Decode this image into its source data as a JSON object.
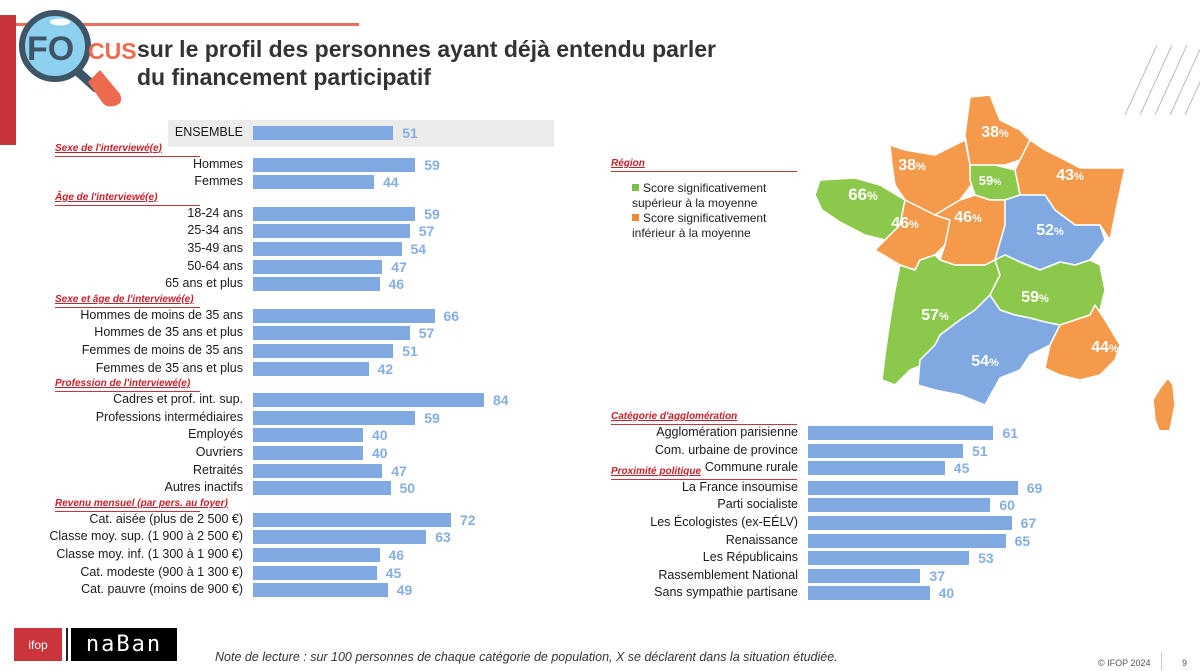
{
  "header": {
    "logo_text_fo": "FO",
    "logo_text_cus": "CUS",
    "title_line1": "sur le profil des personnes ayant déjà entendu parler",
    "title_line2": "du financement participatif"
  },
  "colors": {
    "bar": "#7fa9e0",
    "value_label": "#86aee3",
    "section_header": "#c8202a",
    "map_above": "#8cc84b",
    "map_below": "#f59a4a",
    "map_neutral": "#7fa9e0"
  },
  "chart_data": [
    {
      "type": "bar",
      "orientation": "horizontal",
      "title": "Profil sociodémographique",
      "unit": "%",
      "groups": [
        {
          "header": "",
          "rows": [
            {
              "label": "ENSEMBLE",
              "value": 51,
              "highlight": true
            }
          ]
        },
        {
          "header": "Sexe de l'interviewé(e)",
          "rows": [
            {
              "label": "Hommes",
              "value": 59
            },
            {
              "label": "Femmes",
              "value": 44
            }
          ]
        },
        {
          "header": "Âge de l'interviewé(e)",
          "rows": [
            {
              "label": "18-24 ans",
              "value": 59
            },
            {
              "label": "25-34 ans",
              "value": 57
            },
            {
              "label": "35-49 ans",
              "value": 54
            },
            {
              "label": "50-64 ans",
              "value": 47
            },
            {
              "label": "65 ans et plus",
              "value": 46
            }
          ]
        },
        {
          "header": "Sexe et âge de l'interviewé(e)",
          "rows": [
            {
              "label": "Hommes de moins de 35 ans",
              "value": 66
            },
            {
              "label": "Hommes de 35 ans et plus",
              "value": 57
            },
            {
              "label": "Femmes de moins de 35 ans",
              "value": 51
            },
            {
              "label": "Femmes de 35 ans et plus",
              "value": 42
            }
          ]
        },
        {
          "header": "Profession de l'interviewé(e)",
          "rows": [
            {
              "label": "Cadres et prof. int. sup.",
              "value": 84
            },
            {
              "label": "Professions intermédiaires",
              "value": 59
            },
            {
              "label": "Employés",
              "value": 40
            },
            {
              "label": "Ouvriers",
              "value": 40
            },
            {
              "label": "Retraités",
              "value": 47
            },
            {
              "label": "Autres inactifs",
              "value": 50
            }
          ]
        },
        {
          "header": "Revenu mensuel (par pers. au foyer)",
          "rows": [
            {
              "label": "Cat. aisée (plus de 2 500 €)",
              "value": 72
            },
            {
              "label": "Classe moy. sup. (1 900 à 2 500 €)",
              "value": 63
            },
            {
              "label": "Classe moy. inf. (1 300 à 1 900 €)",
              "value": 46
            },
            {
              "label": "Cat. modeste (900 à 1 300 €)",
              "value": 45
            },
            {
              "label": "Cat. pauvre (moins de 900 €)",
              "value": 49
            }
          ]
        }
      ]
    },
    {
      "type": "bar",
      "orientation": "horizontal",
      "title": "Agglomération et proximité politique",
      "unit": "%",
      "groups": [
        {
          "header": "Catégorie d'agglomération",
          "rows": [
            {
              "label": "Agglomération parisienne",
              "value": 61
            },
            {
              "label": "Com. urbaine de province",
              "value": 51
            },
            {
              "label": "Commune rurale",
              "value": 45
            }
          ]
        },
        {
          "header": "Proximité politique",
          "rows": [
            {
              "label": "La France insoumise",
              "value": 69
            },
            {
              "label": "Parti socialiste",
              "value": 60
            },
            {
              "label": "Les Écologistes (ex-EÉLV)",
              "value": 67
            },
            {
              "label": "Renaissance",
              "value": 65
            },
            {
              "label": "Les Républicains",
              "value": 53
            },
            {
              "label": "Rassemblement National",
              "value": 37
            },
            {
              "label": "Sans sympathie partisane",
              "value": 40
            }
          ]
        }
      ]
    },
    {
      "type": "map",
      "title": "Région",
      "legend": [
        {
          "label": "Score significativement supérieur à la moyenne",
          "status": "above"
        },
        {
          "label": "Score significativement inférieur à la moyenne",
          "status": "below"
        }
      ],
      "regions": [
        {
          "name": "Hauts-de-France",
          "value": "38",
          "status": "below"
        },
        {
          "name": "Normandie",
          "value": "38",
          "status": "below"
        },
        {
          "name": "Grand Est",
          "value": "43",
          "status": "below"
        },
        {
          "name": "Île-de-France",
          "value": "59",
          "status": "above"
        },
        {
          "name": "Bretagne",
          "value": "66",
          "status": "above"
        },
        {
          "name": "Pays de la Loire",
          "value": "46",
          "status": "below"
        },
        {
          "name": "Centre-Val de Loire",
          "value": "46",
          "status": "below"
        },
        {
          "name": "Bourgogne-Franche-Comté",
          "value": "52",
          "status": "neutral"
        },
        {
          "name": "Nouvelle-Aquitaine",
          "value": "57",
          "status": "above"
        },
        {
          "name": "Auvergne-Rhône-Alpes",
          "value": "59",
          "status": "above"
        },
        {
          "name": "Occitanie",
          "value": "54",
          "status": "neutral"
        },
        {
          "name": "Provence-Alpes-Côte d'Azur",
          "value": "44",
          "status": "below"
        },
        {
          "name": "Corse",
          "value": "",
          "status": "below"
        }
      ],
      "pct_suffix": "%"
    }
  ],
  "footer": {
    "ifop_logo": "ifop",
    "naban_logo": "naBan",
    "note": "Note de lecture : sur 100 personnes de chaque catégorie de population, X se déclarent dans la situation étudiée.",
    "copyright": "© IFOP 2024",
    "page_number": "9"
  }
}
